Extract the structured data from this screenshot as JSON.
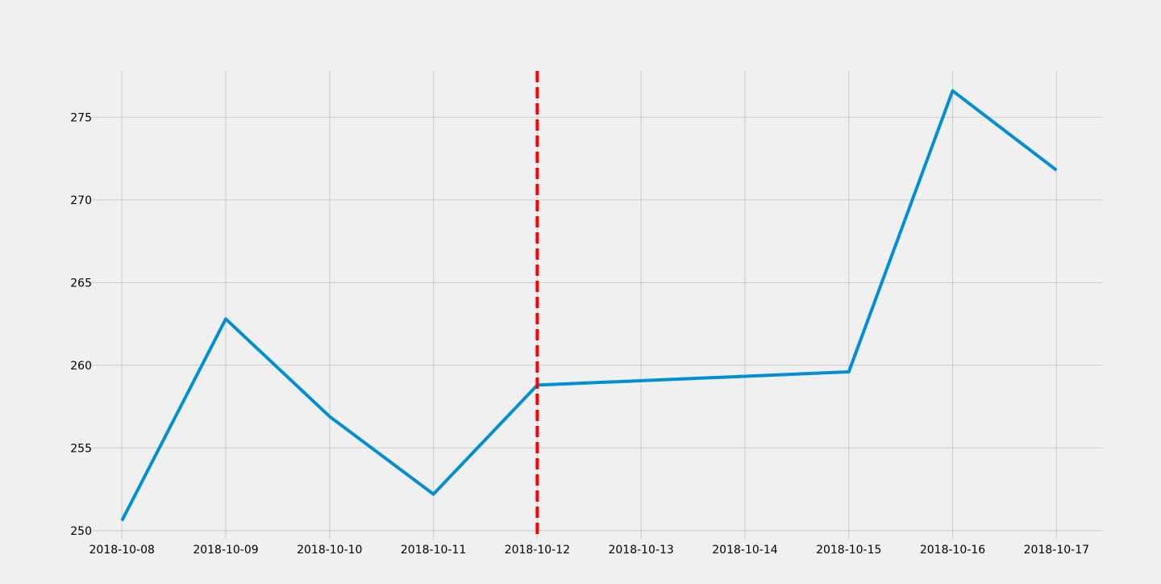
{
  "chart_data": {
    "type": "line",
    "title": "",
    "xlabel": "",
    "ylabel": "",
    "x": [
      "2018-10-08",
      "2018-10-09",
      "2018-10-10",
      "2018-10-11",
      "2018-10-12",
      "2018-10-13",
      "2018-10-14",
      "2018-10-15",
      "2018-10-16",
      "2018-10-17"
    ],
    "x_tick_labels": [
      "2018-10-08",
      "2018-10-09",
      "2018-10-10",
      "2018-10-11",
      "2018-10-12",
      "2018-10-13",
      "2018-10-14",
      "2018-10-15",
      "2018-10-16",
      "2018-10-17"
    ],
    "series": [
      {
        "color": "#008fd5",
        "points": [
          {
            "x": "2018-10-08",
            "y": 250.6
          },
          {
            "x": "2018-10-09",
            "y": 262.8
          },
          {
            "x": "2018-10-10",
            "y": 256.9
          },
          {
            "x": "2018-10-11",
            "y": 252.2
          },
          {
            "x": "2018-10-12",
            "y": 258.8
          },
          {
            "x": "2018-10-15",
            "y": 259.6
          },
          {
            "x": "2018-10-16",
            "y": 276.6
          },
          {
            "x": "2018-10-17",
            "y": 271.8
          }
        ]
      }
    ],
    "yticks": [
      250,
      255,
      260,
      265,
      270,
      275
    ],
    "ylim": [
      249.5,
      277.8
    ],
    "xlim": [
      "2018-10-07.68",
      "2018-10-17.44"
    ],
    "grid": true,
    "vertical_marker": {
      "x": "2018-10-12",
      "color": "#ff0000",
      "style": "dashed"
    },
    "colors": {
      "background": "#f0f0f0",
      "grid": "#cbcbcb"
    }
  }
}
